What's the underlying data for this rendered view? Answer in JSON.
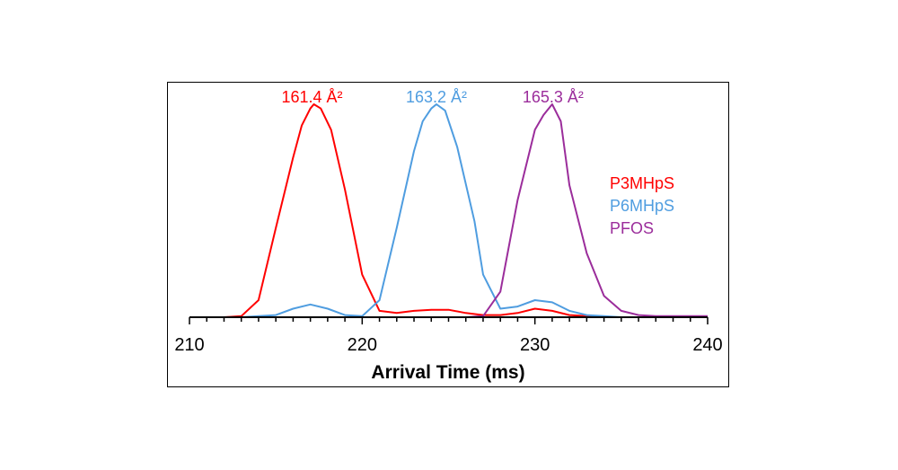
{
  "chart_data": {
    "type": "line",
    "title": "",
    "xlabel": "Arrival Time (ms)",
    "ylabel": "",
    "xlim": [
      210,
      240
    ],
    "ylim": [
      0,
      1
    ],
    "x_ticks": [
      "210",
      "220",
      "230",
      "240"
    ],
    "x_tick_values": [
      210,
      220,
      230,
      240
    ],
    "grid": false,
    "legend_position": "right",
    "series": [
      {
        "name": "P3MHpS",
        "color": "#ff0000",
        "peak_label": "161.4 Å²",
        "peak_x": 217.2,
        "x": [
          210,
          211,
          212,
          213,
          214,
          215,
          216,
          216.5,
          217,
          217.2,
          217.6,
          218.2,
          219,
          220,
          221,
          222,
          223,
          224,
          225,
          226,
          227,
          228,
          229,
          230,
          231,
          232,
          233,
          234,
          235,
          236,
          237,
          238,
          239,
          240
        ],
        "y": [
          0,
          0,
          0,
          0.005,
          0.08,
          0.42,
          0.75,
          0.9,
          0.98,
          1.0,
          0.98,
          0.88,
          0.6,
          0.2,
          0.03,
          0.02,
          0.03,
          0.035,
          0.035,
          0.02,
          0.01,
          0.01,
          0.02,
          0.04,
          0.03,
          0.01,
          0.005,
          0,
          0,
          0,
          0,
          0,
          0,
          0
        ]
      },
      {
        "name": "P6MHpS",
        "color": "#4f9de0",
        "peak_label": "163.2 Å²",
        "peak_x": 224.3,
        "x": [
          210,
          211,
          212,
          213,
          214,
          215,
          216,
          217,
          218,
          219,
          220,
          221,
          222,
          223,
          223.5,
          224,
          224.3,
          224.8,
          225.5,
          226.5,
          227,
          228,
          229,
          230,
          231,
          232,
          233,
          234,
          235,
          236,
          237,
          238,
          239,
          240
        ],
        "y": [
          0,
          0,
          0,
          0,
          0.005,
          0.01,
          0.04,
          0.06,
          0.04,
          0.01,
          0.005,
          0.08,
          0.42,
          0.78,
          0.92,
          0.98,
          1.0,
          0.97,
          0.8,
          0.45,
          0.2,
          0.04,
          0.05,
          0.08,
          0.07,
          0.03,
          0.01,
          0.005,
          0,
          0,
          0,
          0,
          0,
          0
        ]
      },
      {
        "name": "PFOS",
        "color": "#9b2d9b",
        "peak_label": "165.3 Å²",
        "peak_x": 231.0,
        "x": [
          210,
          212,
          214,
          216,
          218,
          220,
          222,
          224,
          226,
          227,
          228,
          229,
          230,
          230.5,
          231,
          231.5,
          232,
          233,
          234,
          235,
          236,
          237,
          238,
          239,
          240
        ],
        "y": [
          0,
          0,
          0,
          0,
          0,
          0,
          0,
          0,
          0,
          0.005,
          0.12,
          0.55,
          0.88,
          0.95,
          1.0,
          0.92,
          0.62,
          0.3,
          0.1,
          0.03,
          0.01,
          0.005,
          0.005,
          0.005,
          0.005
        ]
      }
    ]
  }
}
